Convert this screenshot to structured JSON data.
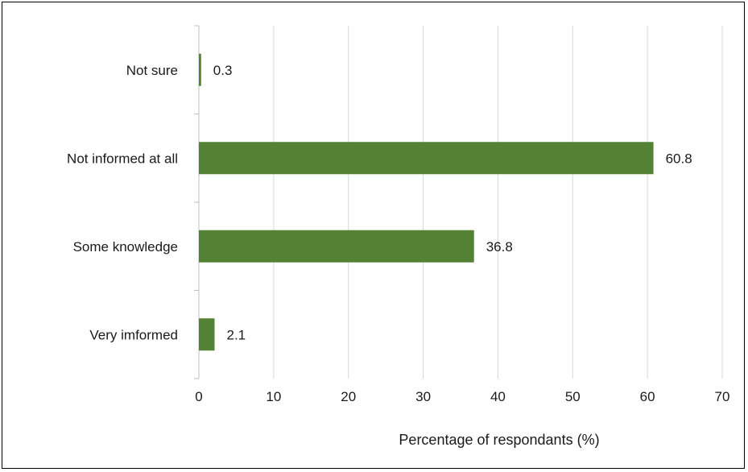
{
  "chart_data": {
    "type": "bar",
    "orientation": "horizontal",
    "categories": [
      "Not sure",
      "Not informed at all",
      "Some knowledge",
      "Very imformed"
    ],
    "values": [
      0.3,
      60.8,
      36.8,
      2.1
    ],
    "data_labels": [
      "0.3",
      "60.8",
      "36.8",
      "2.1"
    ],
    "xlabel": "Percentage of respondants (%)",
    "ylabel": "",
    "xlim": [
      0,
      70
    ],
    "xticks": [
      0,
      10,
      20,
      30,
      40,
      50,
      60,
      70
    ],
    "xtick_labels": [
      "0",
      "10",
      "20",
      "30",
      "40",
      "50",
      "60",
      "70"
    ],
    "grid": "vertical",
    "legend": "none",
    "bar_color": "#548235",
    "grid_color": "#d9d9d9"
  }
}
